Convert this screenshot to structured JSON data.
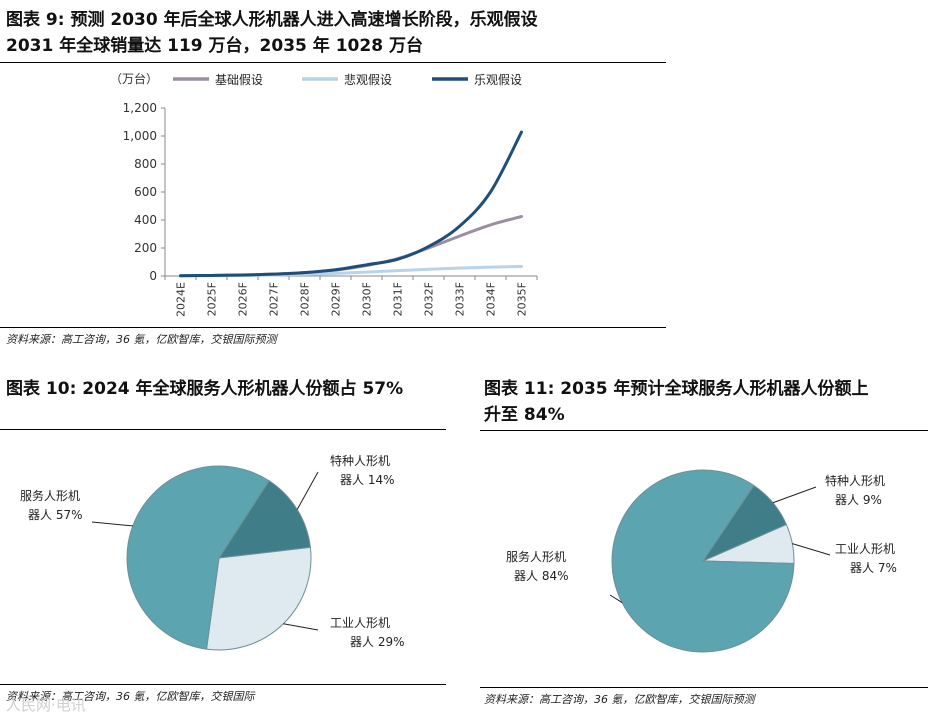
{
  "figure9": {
    "title_line1": "图表 9: 预测 2030 年后全球人形机器人进入高速增长阶段，乐观假设",
    "title_line2": "2031 年全球销量达 119 万台，2035 年 1028 万台",
    "source": "资料来源：高工咨询，36 氪，亿欧智库，交银国际预测"
  },
  "figure10": {
    "title": "图表 10: 2024 年全球服务人形机器人份额占 57%",
    "source": "资料来源：高工咨询，36 氪，亿欧智库，交银国际"
  },
  "figure11": {
    "title_line1": "图表  11: 2035  年预计全球服务人形机器人份额上",
    "title_line2": "升至 84%",
    "source": "资料来源：高工咨询，36 氪，亿欧智库，交银国际预测"
  },
  "watermark": "人民网·电讯",
  "colors": {
    "base_line": "#9a8fa0",
    "pessimistic_line": "#b6d3ea",
    "optimistic_line": "#1f4e7a",
    "pie_service": "#5ba4b0",
    "pie_special": "#3f7d88",
    "pie_industrial": "#deeaf0"
  },
  "chart_data": [
    {
      "type": "line",
      "unit": "（万台）",
      "x": [
        "2024E",
        "2025F",
        "2026F",
        "2027F",
        "2028F",
        "2029F",
        "2030F",
        "2031F",
        "2032F",
        "2033F",
        "2034F",
        "2035F"
      ],
      "ylim": [
        0,
        1200
      ],
      "yticks": [
        0,
        200,
        400,
        600,
        800,
        1000,
        1200
      ],
      "ytick_labels": [
        "0",
        "200",
        "400",
        "600",
        "800",
        "1,000",
        "1,200"
      ],
      "grid": false,
      "legend": "top",
      "series": [
        {
          "name": "基础假设",
          "color": "#9a8fa0",
          "values": [
            2,
            4,
            7,
            13,
            24,
            42,
            75,
            124,
            200,
            285,
            365,
            425
          ]
        },
        {
          "name": "悲观假设",
          "color": "#b6d3ea",
          "values": [
            1,
            2,
            4,
            7,
            12,
            19,
            28,
            38,
            48,
            56,
            63,
            68
          ]
        },
        {
          "name": "乐观假设",
          "color": "#1f4e7a",
          "values": [
            2,
            4,
            7,
            13,
            24,
            45,
            80,
            119,
            210,
            355,
            600,
            1028
          ]
        }
      ]
    },
    {
      "type": "pie",
      "slices": [
        {
          "label": "特种人形机器人 14%",
          "label_line1": "特种人形机",
          "label_line2": "器人 14%",
          "value": 14,
          "color": "#3f7d88"
        },
        {
          "label": "工业人形机器人 29%",
          "label_line1": "工业人形机",
          "label_line2": "器人 29%",
          "value": 29,
          "color": "#deeaf0"
        },
        {
          "label": "服务人形机器人 57%",
          "label_line1": "服务人形机",
          "label_line2": "器人 57%",
          "value": 57,
          "color": "#5ba4b0"
        }
      ]
    },
    {
      "type": "pie",
      "slices": [
        {
          "label": "特种人形机器人 9%",
          "label_line1": "特种人形机",
          "label_line2": "器人 9%",
          "value": 9,
          "color": "#3f7d88"
        },
        {
          "label": "工业人形机器人 7%",
          "label_line1": "工业人形机",
          "label_line2": "器人 7%",
          "value": 7,
          "color": "#deeaf0"
        },
        {
          "label": "服务人形机器人 84%",
          "label_line1": "服务人形机",
          "label_line2": "器人 84%",
          "value": 84,
          "color": "#5ba4b0"
        }
      ]
    }
  ]
}
